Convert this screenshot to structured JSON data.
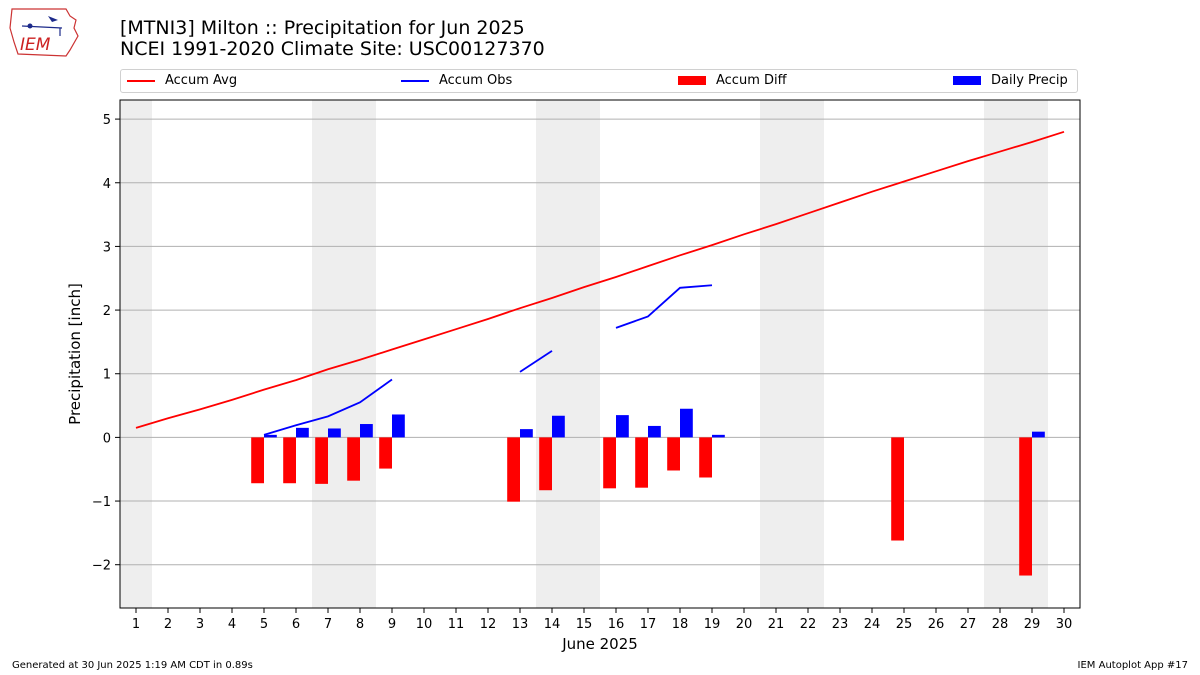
{
  "header": {
    "title_line1": "[MTNI3] Milton :: Precipitation for Jun 2025",
    "title_line2": "NCEI 1991-2020 Climate Site: USC00127370",
    "logo_text": "IEM"
  },
  "footer": {
    "generated": "Generated at 30 Jun 2025 1:19 AM CDT in 0.89s",
    "app": "IEM Autoplot App #17"
  },
  "colors": {
    "avg": "#ff0000",
    "obs": "#0000ff",
    "diff": "#ff0000",
    "precip": "#0000ff",
    "weekend": "#eeeeee",
    "grid": "#b0b0b0"
  },
  "chart_data": {
    "type": "bar",
    "title": "[MTNI3] Milton :: Precipitation for Jun 2025",
    "xlabel": "June 2025",
    "ylabel": "Precipitation [inch]",
    "ylim": [
      -2.68,
      5.3
    ],
    "xlim": [
      0.5,
      30.5
    ],
    "yticks": [
      -2,
      -1,
      0,
      1,
      2,
      3,
      4,
      5
    ],
    "ytick_labels": [
      "−2",
      "−1",
      "0",
      "1",
      "2",
      "3",
      "4",
      "5"
    ],
    "xticks": [
      1,
      2,
      3,
      4,
      5,
      6,
      7,
      8,
      9,
      10,
      11,
      12,
      13,
      14,
      15,
      16,
      17,
      18,
      19,
      20,
      21,
      22,
      23,
      24,
      25,
      26,
      27,
      28,
      29,
      30
    ],
    "grid": "horizontal",
    "legend_placement": "top",
    "shaded_days": [
      [
        0.5,
        1.5
      ],
      [
        6.5,
        8.5
      ],
      [
        13.5,
        15.5
      ],
      [
        20.5,
        22.5
      ],
      [
        27.5,
        29.5
      ]
    ],
    "series": [
      {
        "name": "Accum Avg",
        "kind": "line",
        "segments": [
          [
            [
              1,
              0.15
            ],
            [
              2,
              0.3
            ],
            [
              3,
              0.44
            ],
            [
              4,
              0.59
            ],
            [
              5,
              0.75
            ],
            [
              6,
              0.9
            ],
            [
              7,
              1.07
            ],
            [
              8,
              1.22
            ],
            [
              9,
              1.38
            ],
            [
              10,
              1.54
            ],
            [
              11,
              1.7
            ],
            [
              12,
              1.86
            ],
            [
              13,
              2.03
            ],
            [
              14,
              2.19
            ],
            [
              15,
              2.36
            ],
            [
              16,
              2.52
            ],
            [
              17,
              2.69
            ],
            [
              18,
              2.86
            ],
            [
              19,
              3.02
            ],
            [
              20,
              3.19
            ],
            [
              21,
              3.35
            ],
            [
              22,
              3.52
            ],
            [
              23,
              3.69
            ],
            [
              24,
              3.86
            ],
            [
              25,
              4.02
            ],
            [
              26,
              4.18
            ],
            [
              27,
              4.34
            ],
            [
              28,
              4.49
            ],
            [
              29,
              4.64
            ],
            [
              30,
              4.8
            ]
          ]
        ]
      },
      {
        "name": "Accum Obs",
        "kind": "line",
        "segments": [
          [
            [
              5,
              0.04
            ],
            [
              6,
              0.19
            ],
            [
              7,
              0.33
            ],
            [
              8,
              0.55
            ],
            [
              9,
              0.91
            ]
          ],
          [
            [
              13,
              1.03
            ],
            [
              14,
              1.36
            ]
          ],
          [
            [
              16,
              1.72
            ],
            [
              17,
              1.9
            ],
            [
              18,
              2.35
            ],
            [
              19,
              2.39
            ]
          ]
        ]
      },
      {
        "name": "Accum Diff",
        "kind": "bar",
        "points": [
          [
            5,
            -0.72
          ],
          [
            6,
            -0.72
          ],
          [
            7,
            -0.73
          ],
          [
            8,
            -0.68
          ],
          [
            9,
            -0.49
          ],
          [
            13,
            -1.01
          ],
          [
            14,
            -0.83
          ],
          [
            16,
            -0.8
          ],
          [
            17,
            -0.79
          ],
          [
            18,
            -0.52
          ],
          [
            19,
            -0.63
          ],
          [
            25,
            -1.62
          ],
          [
            29,
            -2.17
          ]
        ]
      },
      {
        "name": "Daily Precip",
        "kind": "bar",
        "points": [
          [
            5,
            0.04
          ],
          [
            6,
            0.15
          ],
          [
            7,
            0.14
          ],
          [
            8,
            0.21
          ],
          [
            9,
            0.36
          ],
          [
            13,
            0.13
          ],
          [
            14,
            0.34
          ],
          [
            16,
            0.35
          ],
          [
            17,
            0.18
          ],
          [
            18,
            0.45
          ],
          [
            19,
            0.04
          ],
          [
            29,
            0.09
          ]
        ]
      }
    ]
  }
}
